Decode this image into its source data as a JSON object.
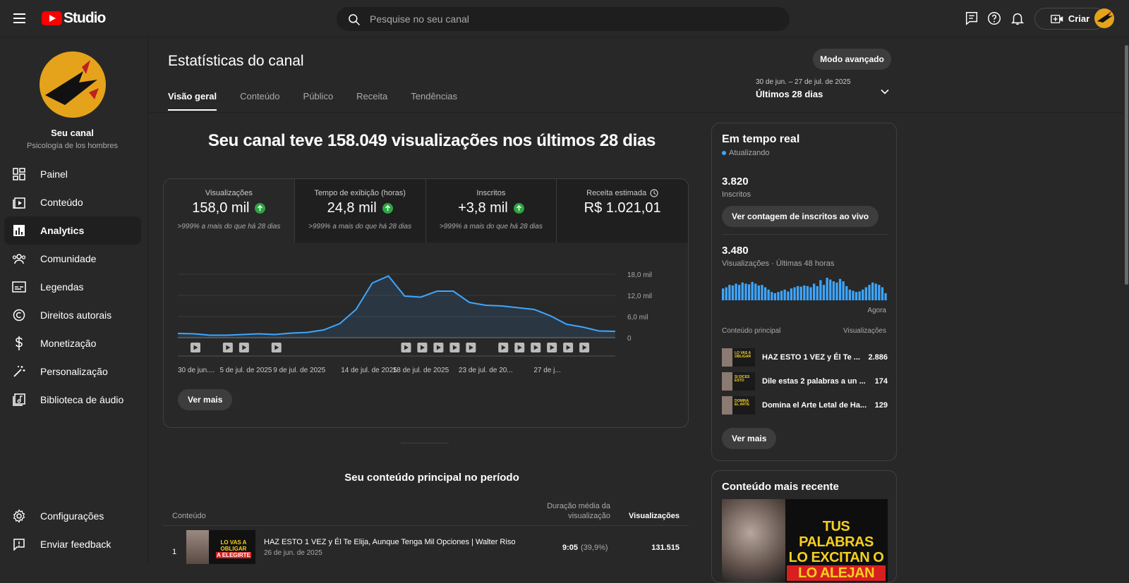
{
  "app": {
    "logo_text": "Studio"
  },
  "search": {
    "placeholder": "Pesquise no seu canal"
  },
  "header": {
    "create_label": "Criar"
  },
  "channel": {
    "name": "Seu canal",
    "subtitle": "Psicología de los hombres"
  },
  "sidebar": {
    "items": [
      {
        "label": "Painel",
        "icon": "dashboard-icon"
      },
      {
        "label": "Conteúdo",
        "icon": "content-icon"
      },
      {
        "label": "Analytics",
        "icon": "analytics-icon",
        "active": true
      },
      {
        "label": "Comunidade",
        "icon": "community-icon"
      },
      {
        "label": "Legendas",
        "icon": "subtitles-icon"
      },
      {
        "label": "Direitos autorais",
        "icon": "copyright-icon"
      },
      {
        "label": "Monetização",
        "icon": "dollar-icon"
      },
      {
        "label": "Personalização",
        "icon": "magic-wand-icon"
      },
      {
        "label": "Biblioteca de áudio",
        "icon": "audio-library-icon"
      }
    ],
    "footer": [
      {
        "label": "Configurações",
        "icon": "gear-icon"
      },
      {
        "label": "Enviar feedback",
        "icon": "feedback-icon"
      }
    ]
  },
  "page": {
    "title": "Estatísticas do canal",
    "advanced_button": "Modo avançado",
    "tabs": [
      "Visão geral",
      "Conteúdo",
      "Público",
      "Receita",
      "Tendências"
    ],
    "active_tab": "Visão geral",
    "date_range": {
      "dates": "30 de jun. – 27 de jul. de 2025",
      "label": "Últimos 28 dias"
    },
    "headline": "Seu canal teve 158.049 visualizações nos últimos 28 dias"
  },
  "metrics": [
    {
      "label": "Visualizações",
      "value": "158,0 mil",
      "change": ">999% a mais do que há 28 dias",
      "trend": "up"
    },
    {
      "label": "Tempo de exibição (horas)",
      "value": "24,8 mil",
      "change": ">999% a mais do que há 28 dias",
      "trend": "up"
    },
    {
      "label": "Inscritos",
      "value": "+3,8 mil",
      "change": ">999% a mais do que há 28 dias",
      "trend": "up"
    },
    {
      "label": "Receita estimada",
      "value": "R$ 1.021,01",
      "change": ""
    }
  ],
  "overview": {
    "more_button": "Ver mais"
  },
  "chart_data": {
    "type": "area",
    "series": [
      {
        "values": [
          1200,
          1100,
          700,
          700,
          900,
          1100,
          900,
          1300,
          1500,
          2200,
          4000,
          8000,
          15500,
          17500,
          11800,
          11500,
          13200,
          13200,
          10000,
          9200,
          9000,
          8500,
          8000,
          6200,
          3800,
          3000,
          1900,
          1800
        ]
      }
    ],
    "x_tick_labels": [
      "30 de jun....",
      "5 de jul. de 2025",
      "9 de jul. de 2025",
      "14 de jul. de 2025",
      "18 de jul. de 2025",
      "23 de jul. de 20...",
      "27 de j..."
    ],
    "y_tick_labels": [
      "18,0 mil",
      "12,0 mil",
      "6,0 mil",
      "0"
    ],
    "ylim": [
      0,
      18000
    ],
    "grid": true,
    "upload_markers_day_index": [
      1,
      3,
      4,
      6,
      14,
      15,
      16,
      17,
      18,
      20,
      21,
      22,
      23,
      24,
      25
    ],
    "color": "#3ea6ff"
  },
  "top_content": {
    "title": "Seu conteúdo principal no período",
    "col_content": "Conteúdo",
    "col_avg_duration": "Duração média da visualização",
    "col_views": "Visualizações",
    "rows": [
      {
        "rank": "1",
        "title": "HAZ ESTO 1 VEZ y Él Te Elija, Aunque Tenga Mil Opciones | Walter Riso",
        "date": "26 de jun. de 2025",
        "avg_duration": "9:05",
        "avg_pct": "(39,9%)",
        "views": "131.515",
        "thumb_text": [
          "LO VAS A",
          "OBLIGAR",
          "A ELEGIRTE"
        ]
      }
    ]
  },
  "realtime": {
    "title": "Em tempo real",
    "status": "Atualizando",
    "subscribers_value": "3.820",
    "subscribers_label": "Inscritos",
    "live_count_button": "Ver contagem de inscritos ao vivo",
    "views_value": "3.480",
    "views_label": "Visualizações · Últimas 48 horas",
    "bars": [
      20,
      22,
      26,
      25,
      28,
      26,
      30,
      28,
      27,
      31,
      28,
      25,
      26,
      22,
      18,
      14,
      12,
      14,
      16,
      18,
      15,
      20,
      22,
      24,
      23,
      25,
      24,
      22,
      28,
      24,
      34,
      26,
      38,
      35,
      32,
      30,
      36,
      32,
      24,
      18,
      16,
      14,
      15,
      18,
      22,
      26,
      30,
      28,
      26,
      22,
      12
    ],
    "now_label": "Agora",
    "top_header_content": "Conteúdo principal",
    "top_header_views": "Visualizações",
    "top_items": [
      {
        "title": "HAZ ESTO 1 VEZ y Él Te ...",
        "views": "2.886",
        "thumb_text": "LO VAS A OBLIGAR"
      },
      {
        "title": "Dile estas 2 palabras a un ...",
        "views": "174",
        "thumb_text": "SI DICES ESTO"
      },
      {
        "title": "Domina el Arte Letal de Ha...",
        "views": "129",
        "thumb_text": "DOMINA EL ARTE"
      }
    ],
    "more_button": "Ver mais"
  },
  "recent": {
    "title": "Conteúdo mais recente",
    "thumb_lines": [
      "TUS PALABRAS",
      "LO EXCITAN O",
      "LO ALEJAN"
    ]
  }
}
